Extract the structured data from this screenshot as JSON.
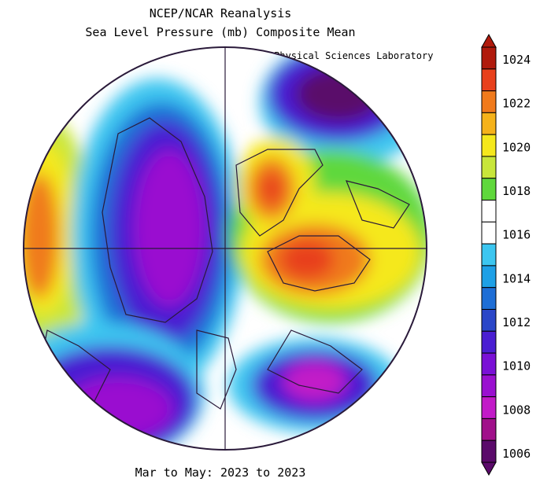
{
  "header": {
    "title_line1": "NCEP/NCAR Reanalysis",
    "title_line2": "Sea Level Pressure (mb) Composite Mean",
    "credit": "NOAA Physical Sciences Laboratory"
  },
  "footer": {
    "period": "Mar to May: 2023 to 2023"
  },
  "colorbar": {
    "labels": [
      "1024",
      "1022",
      "1020",
      "1018",
      "1016",
      "1014",
      "1012",
      "1010",
      "1008",
      "1006"
    ],
    "colors": [
      "#b01a0c",
      "#e8401c",
      "#f07a1c",
      "#f5b21a",
      "#f5e81c",
      "#c8e63a",
      "#5fd83c",
      "#ffffff",
      "#ffffff",
      "#3cc6f0",
      "#1ea0e6",
      "#1e6ed6",
      "#2a46c8",
      "#4a1ed2",
      "#7a10d6",
      "#9a10d0",
      "#c21ac8",
      "#a0108a",
      "#5a0a6a"
    ]
  },
  "legend_colors": {
    "high": "#e8401c",
    "neutral": "#ffffff",
    "low": "#7a10d6",
    "lowest": "#5a0a6a"
  }
}
